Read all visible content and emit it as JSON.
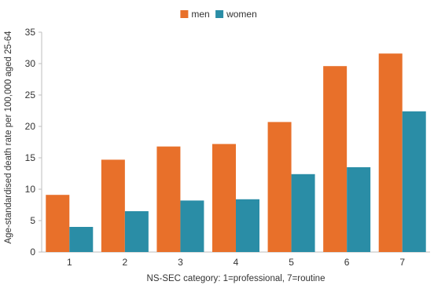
{
  "chart_data": {
    "type": "bar",
    "title": "",
    "xlabel": "NS-SEC category: 1=professional, 7=routine",
    "ylabel": "Age-standardised death rate per 100,000 aged 25-64",
    "categories": [
      "1",
      "2",
      "3",
      "4",
      "5",
      "6",
      "7"
    ],
    "series": [
      {
        "name": "men",
        "color": "#E8702A",
        "values": [
          9.1,
          14.7,
          16.8,
          17.2,
          20.7,
          29.6,
          31.6
        ]
      },
      {
        "name": "women",
        "color": "#2A8DA6",
        "values": [
          4.0,
          6.5,
          8.2,
          8.4,
          12.4,
          13.5,
          22.4
        ]
      }
    ],
    "ylim": [
      0,
      35
    ],
    "yticks": [
      0,
      5,
      10,
      15,
      20,
      25,
      30,
      35
    ],
    "grid": false,
    "legend_position": "top-center"
  }
}
